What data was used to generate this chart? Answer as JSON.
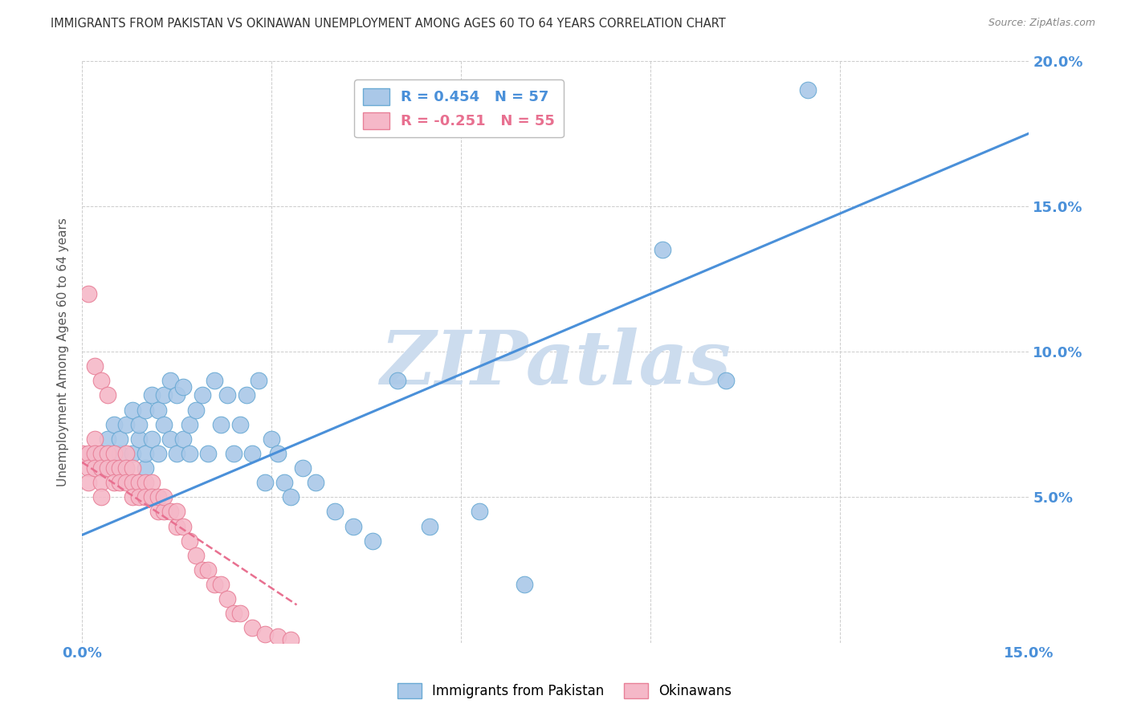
{
  "title": "IMMIGRANTS FROM PAKISTAN VS OKINAWAN UNEMPLOYMENT AMONG AGES 60 TO 64 YEARS CORRELATION CHART",
  "source": "Source: ZipAtlas.com",
  "ylabel": "Unemployment Among Ages 60 to 64 years",
  "xlim": [
    0.0,
    0.15
  ],
  "ylim": [
    0.0,
    0.2
  ],
  "xticks": [
    0.0,
    0.03,
    0.06,
    0.09,
    0.12,
    0.15
  ],
  "yticks": [
    0.0,
    0.05,
    0.1,
    0.15,
    0.2
  ],
  "xtick_labels": [
    "0.0%",
    "",
    "",
    "",
    "",
    "15.0%"
  ],
  "ytick_labels_right": [
    "",
    "5.0%",
    "10.0%",
    "15.0%",
    "20.0%"
  ],
  "blue_scatter_x": [
    0.002,
    0.003,
    0.004,
    0.005,
    0.006,
    0.006,
    0.007,
    0.007,
    0.008,
    0.008,
    0.009,
    0.009,
    0.01,
    0.01,
    0.01,
    0.011,
    0.011,
    0.012,
    0.012,
    0.013,
    0.013,
    0.014,
    0.014,
    0.015,
    0.015,
    0.016,
    0.016,
    0.017,
    0.017,
    0.018,
    0.019,
    0.02,
    0.021,
    0.022,
    0.023,
    0.024,
    0.025,
    0.026,
    0.027,
    0.028,
    0.029,
    0.03,
    0.031,
    0.032,
    0.033,
    0.035,
    0.037,
    0.04,
    0.043,
    0.046,
    0.05,
    0.055,
    0.063,
    0.07,
    0.092,
    0.102,
    0.115
  ],
  "blue_scatter_y": [
    0.065,
    0.06,
    0.07,
    0.075,
    0.065,
    0.07,
    0.06,
    0.075,
    0.065,
    0.08,
    0.07,
    0.075,
    0.06,
    0.065,
    0.08,
    0.07,
    0.085,
    0.065,
    0.08,
    0.075,
    0.085,
    0.07,
    0.09,
    0.065,
    0.085,
    0.07,
    0.088,
    0.075,
    0.065,
    0.08,
    0.085,
    0.065,
    0.09,
    0.075,
    0.085,
    0.065,
    0.075,
    0.085,
    0.065,
    0.09,
    0.055,
    0.07,
    0.065,
    0.055,
    0.05,
    0.06,
    0.055,
    0.045,
    0.04,
    0.035,
    0.09,
    0.04,
    0.045,
    0.02,
    0.135,
    0.09,
    0.19
  ],
  "pink_scatter_x": [
    0.0,
    0.001,
    0.001,
    0.001,
    0.002,
    0.002,
    0.002,
    0.003,
    0.003,
    0.003,
    0.003,
    0.004,
    0.004,
    0.005,
    0.005,
    0.005,
    0.006,
    0.006,
    0.007,
    0.007,
    0.007,
    0.008,
    0.008,
    0.008,
    0.009,
    0.009,
    0.01,
    0.01,
    0.011,
    0.011,
    0.012,
    0.012,
    0.013,
    0.013,
    0.014,
    0.015,
    0.015,
    0.016,
    0.017,
    0.018,
    0.019,
    0.02,
    0.021,
    0.022,
    0.023,
    0.024,
    0.025,
    0.027,
    0.029,
    0.031,
    0.033,
    0.001,
    0.002,
    0.003,
    0.004
  ],
  "pink_scatter_y": [
    0.065,
    0.065,
    0.06,
    0.055,
    0.07,
    0.065,
    0.06,
    0.065,
    0.06,
    0.055,
    0.05,
    0.065,
    0.06,
    0.065,
    0.06,
    0.055,
    0.06,
    0.055,
    0.065,
    0.06,
    0.055,
    0.06,
    0.055,
    0.05,
    0.055,
    0.05,
    0.055,
    0.05,
    0.055,
    0.05,
    0.045,
    0.05,
    0.045,
    0.05,
    0.045,
    0.04,
    0.045,
    0.04,
    0.035,
    0.03,
    0.025,
    0.025,
    0.02,
    0.02,
    0.015,
    0.01,
    0.01,
    0.005,
    0.003,
    0.002,
    0.001,
    0.12,
    0.095,
    0.09,
    0.085
  ],
  "blue_line_x": [
    0.0,
    0.15
  ],
  "blue_line_y": [
    0.037,
    0.175
  ],
  "pink_line_x": [
    0.0,
    0.034
  ],
  "pink_line_y": [
    0.062,
    0.013
  ],
  "blue_dot_color": "#aac8e8",
  "blue_edge_color": "#6aaad4",
  "pink_dot_color": "#f5b8c8",
  "pink_edge_color": "#e88098",
  "blue_line_color": "#4a90d9",
  "pink_line_color": "#e87090",
  "watermark_text": "ZIPatlas",
  "watermark_color": "#ccdcee",
  "background_color": "#ffffff",
  "grid_color": "#cccccc",
  "title_color": "#333333",
  "source_color": "#888888",
  "axis_label_color": "#555555",
  "tick_color": "#4a90d9"
}
